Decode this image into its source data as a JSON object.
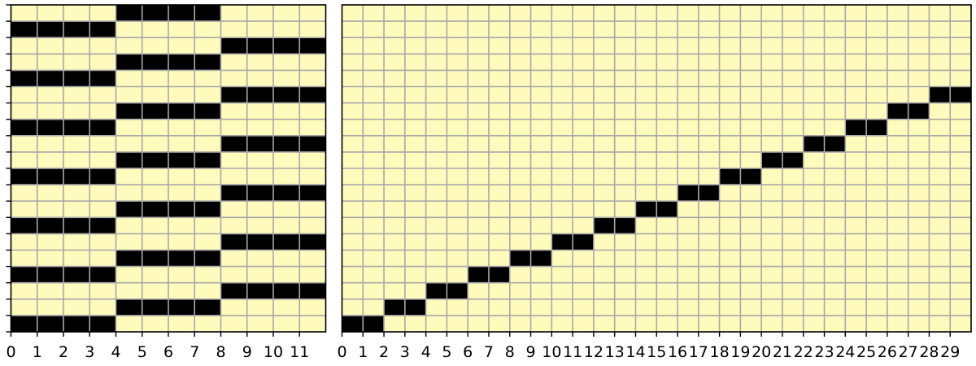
{
  "colors": {
    "background": "#fffbbd",
    "filled": "#000000",
    "grid": "#a8a8a8",
    "frame": "#000000"
  },
  "chart_data": [
    {
      "type": "heatmap",
      "title": "",
      "xlabel": "",
      "ylabel": "",
      "n_cols": 12,
      "n_rows": 20,
      "grid": true,
      "xticks": [
        0,
        1,
        2,
        3,
        4,
        5,
        6,
        7,
        8,
        9,
        10,
        11
      ],
      "xtick_labels": [
        "0",
        "1",
        "2",
        "3",
        "4",
        "5",
        "6",
        "7",
        "8",
        "9",
        "10",
        "11"
      ],
      "filled_cells": [
        {
          "row": 0,
          "col_start": 4,
          "col_end": 8
        },
        {
          "row": 1,
          "col_start": 0,
          "col_end": 4
        },
        {
          "row": 2,
          "col_start": 8,
          "col_end": 12
        },
        {
          "row": 3,
          "col_start": 4,
          "col_end": 8
        },
        {
          "row": 4,
          "col_start": 0,
          "col_end": 4
        },
        {
          "row": 5,
          "col_start": 8,
          "col_end": 12
        },
        {
          "row": 6,
          "col_start": 4,
          "col_end": 8
        },
        {
          "row": 7,
          "col_start": 0,
          "col_end": 4
        },
        {
          "row": 8,
          "col_start": 8,
          "col_end": 12
        },
        {
          "row": 9,
          "col_start": 4,
          "col_end": 8
        },
        {
          "row": 10,
          "col_start": 0,
          "col_end": 4
        },
        {
          "row": 11,
          "col_start": 8,
          "col_end": 12
        },
        {
          "row": 12,
          "col_start": 4,
          "col_end": 8
        },
        {
          "row": 13,
          "col_start": 0,
          "col_end": 4
        },
        {
          "row": 14,
          "col_start": 8,
          "col_end": 12
        },
        {
          "row": 15,
          "col_start": 4,
          "col_end": 8
        },
        {
          "row": 16,
          "col_start": 0,
          "col_end": 4
        },
        {
          "row": 17,
          "col_start": 8,
          "col_end": 12
        },
        {
          "row": 18,
          "col_start": 4,
          "col_end": 8
        },
        {
          "row": 19,
          "col_start": 0,
          "col_end": 4
        }
      ]
    },
    {
      "type": "heatmap",
      "title": "",
      "xlabel": "",
      "ylabel": "",
      "n_cols": 30,
      "n_rows": 20,
      "grid": true,
      "xticks": [
        0,
        1,
        2,
        3,
        4,
        5,
        6,
        7,
        8,
        9,
        10,
        11,
        12,
        13,
        14,
        15,
        16,
        17,
        18,
        19,
        20,
        21,
        22,
        23,
        24,
        25,
        26,
        27,
        28,
        29
      ],
      "xtick_labels": [
        "0",
        "1",
        "2",
        "3",
        "4",
        "5",
        "6",
        "7",
        "8",
        "9",
        "10",
        "11",
        "12",
        "13",
        "14",
        "15",
        "16",
        "17",
        "18",
        "19",
        "20",
        "21",
        "22",
        "23",
        "24",
        "25",
        "26",
        "27",
        "28",
        "29"
      ],
      "filled_cells": [
        {
          "row": 5,
          "col_start": 28,
          "col_end": 30
        },
        {
          "row": 6,
          "col_start": 26,
          "col_end": 28
        },
        {
          "row": 7,
          "col_start": 24,
          "col_end": 26
        },
        {
          "row": 8,
          "col_start": 22,
          "col_end": 24
        },
        {
          "row": 9,
          "col_start": 20,
          "col_end": 22
        },
        {
          "row": 10,
          "col_start": 18,
          "col_end": 20
        },
        {
          "row": 11,
          "col_start": 16,
          "col_end": 18
        },
        {
          "row": 12,
          "col_start": 14,
          "col_end": 16
        },
        {
          "row": 13,
          "col_start": 12,
          "col_end": 14
        },
        {
          "row": 14,
          "col_start": 10,
          "col_end": 12
        },
        {
          "row": 15,
          "col_start": 8,
          "col_end": 10
        },
        {
          "row": 16,
          "col_start": 6,
          "col_end": 8
        },
        {
          "row": 17,
          "col_start": 4,
          "col_end": 6
        },
        {
          "row": 18,
          "col_start": 2,
          "col_end": 4
        },
        {
          "row": 19,
          "col_start": 0,
          "col_end": 2
        }
      ]
    }
  ]
}
